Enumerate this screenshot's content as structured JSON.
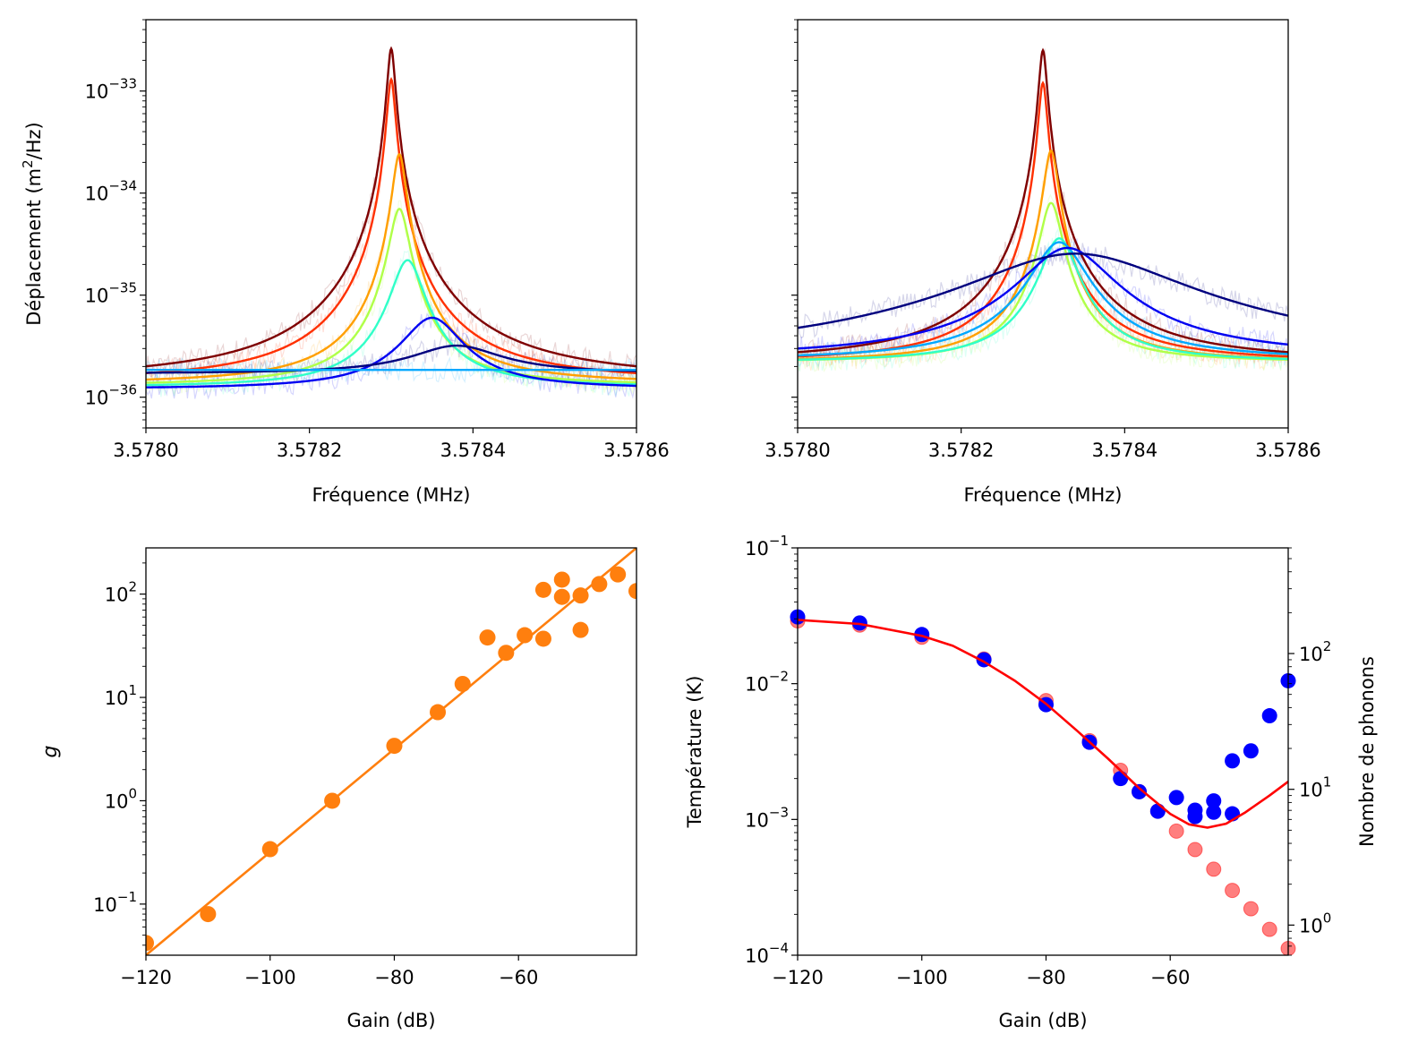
{
  "chart_data": [
    {
      "id": "tl",
      "type": "line",
      "xlabel": "Fréquence (MHz)",
      "ylabel_pre": "Déplacement (m",
      "ylabel_sup": "2",
      "ylabel_post": "/Hz)",
      "xlim": [
        3.578,
        3.5786
      ],
      "ylim": [
        5e-37,
        5e-33
      ],
      "yscale": "log",
      "xticks": [
        "3.5780",
        "3.5782",
        "3.5784",
        "3.5786"
      ],
      "xtick_values": [
        3.578,
        3.5782,
        3.5784,
        3.5786
      ],
      "yticks": [
        {
          "base": "10",
          "exp": "−33",
          "v": 1e-33
        },
        {
          "base": "10",
          "exp": "−34",
          "v": 1e-34
        },
        {
          "base": "10",
          "exp": "−35",
          "v": 1e-35
        },
        {
          "base": "10",
          "exp": "−36",
          "v": 1e-36
        }
      ],
      "series": [
        {
          "color": "#7f0000",
          "f0": 3.5783,
          "gamma": 4.4e-06,
          "peak": 2.6e-33,
          "bg": 1.45e-36
        },
        {
          "color": "#ff3000",
          "f0": 3.5783,
          "gamma": 4.7e-06,
          "peak": 1.3e-33,
          "bg": 1.4e-36
        },
        {
          "color": "#ff9f00",
          "f0": 3.57831,
          "gamma": 7.5e-06,
          "peak": 2.4e-34,
          "bg": 1.35e-36
        },
        {
          "color": "#b0ff48",
          "f0": 3.57831,
          "gamma": 1.1e-05,
          "peak": 7e-35,
          "bg": 1.3e-36
        },
        {
          "color": "#30ffc8",
          "f0": 3.57832,
          "gamma": 1.8e-05,
          "peak": 2.2e-35,
          "bg": 1.25e-36
        },
        {
          "color": "#0000f1",
          "f0": 3.57835,
          "gamma": 3.5e-05,
          "peak": 6e-36,
          "bg": 1.2e-36
        },
        {
          "color": "#00007f",
          "f0": 3.57838,
          "gamma": 6e-05,
          "peak": 3.2e-36,
          "bg": 1.7e-36
        },
        {
          "color": "#00a8ff",
          "f0": 3.57838,
          "gamma": 0.0001,
          "peak": 1.85e-36,
          "bg": 1.85e-36
        }
      ]
    },
    {
      "id": "tr",
      "type": "line",
      "xlabel": "Fréquence (MHz)",
      "xlim": [
        3.578,
        3.5786
      ],
      "ylim": [
        5e-37,
        5e-33
      ],
      "yscale": "log",
      "xticks": [
        "3.5780",
        "3.5782",
        "3.5784",
        "3.5786"
      ],
      "xtick_values": [
        3.578,
        3.5782,
        3.5784,
        3.5786
      ],
      "series": [
        {
          "color": "#7f0000",
          "f0": 3.5783,
          "gamma": 4.5e-06,
          "peak": 2.5e-33,
          "bg": 2.2e-36
        },
        {
          "color": "#ff3000",
          "f0": 3.5783,
          "gamma": 4.8e-06,
          "peak": 1.2e-33,
          "bg": 2.2e-36
        },
        {
          "color": "#ff9f00",
          "f0": 3.57831,
          "gamma": 8e-06,
          "peak": 2.6e-34,
          "bg": 2.2e-36
        },
        {
          "color": "#b0ff48",
          "f0": 3.57831,
          "gamma": 1.2e-05,
          "peak": 8e-35,
          "bg": 2.2e-36
        },
        {
          "color": "#30ffc8",
          "f0": 3.57832,
          "gamma": 2e-05,
          "peak": 3.6e-35,
          "bg": 2.2e-36
        },
        {
          "color": "#00a8ff",
          "f0": 3.57832,
          "gamma": 3e-05,
          "peak": 3.3e-35,
          "bg": 2.3e-36
        },
        {
          "color": "#0000f1",
          "f0": 3.57833,
          "gamma": 5e-05,
          "peak": 2.9e-35,
          "bg": 2.4e-36
        },
        {
          "color": "#00007f",
          "f0": 3.57834,
          "gamma": 0.00012,
          "peak": 2.55e-35,
          "bg": 2.2e-36
        }
      ]
    },
    {
      "id": "bl",
      "type": "scatter",
      "xlabel": "Gain (dB)",
      "ylabel": "g",
      "xlim": [
        -120,
        -41
      ],
      "ylim": [
        0.032,
        280
      ],
      "yscale": "log",
      "color": "#ff7f0e",
      "xticks": [
        "−120",
        "−100",
        "−80",
        "−60"
      ],
      "xtick_values": [
        -120,
        -100,
        -80,
        -60
      ],
      "yticks": [
        {
          "base": "10",
          "exp": "2",
          "v": 100
        },
        {
          "base": "10",
          "exp": "1",
          "v": 10
        },
        {
          "base": "10",
          "exp": "0",
          "v": 1
        },
        {
          "base": "10",
          "exp": "−1",
          "v": 0.1
        }
      ],
      "points": [
        {
          "x": -120,
          "y": 0.042
        },
        {
          "x": -110,
          "y": 0.08
        },
        {
          "x": -100,
          "y": 0.34
        },
        {
          "x": -90,
          "y": 1.0
        },
        {
          "x": -80,
          "y": 3.4
        },
        {
          "x": -73,
          "y": 7.2
        },
        {
          "x": -69,
          "y": 13.5
        },
        {
          "x": -65,
          "y": 38
        },
        {
          "x": -62,
          "y": 27
        },
        {
          "x": -59,
          "y": 40
        },
        {
          "x": -56,
          "y": 110
        },
        {
          "x": -56,
          "y": 37
        },
        {
          "x": -53,
          "y": 138
        },
        {
          "x": -53,
          "y": 94
        },
        {
          "x": -50,
          "y": 97
        },
        {
          "x": -50,
          "y": 45
        },
        {
          "x": -47,
          "y": 125
        },
        {
          "x": -44,
          "y": 155
        },
        {
          "x": -41,
          "y": 107
        }
      ],
      "fit": [
        {
          "x": -120,
          "y": 0.032
        },
        {
          "x": -41,
          "y": 280
        }
      ]
    },
    {
      "id": "br",
      "type": "scatter",
      "xlabel": "Gain (dB)",
      "ylabel": "Température (K)",
      "y2label": "Nombre de phonons",
      "xlim": [
        -120,
        -41
      ],
      "ylim": [
        0.0001,
        0.1
      ],
      "y2lim": [
        0.6,
        600
      ],
      "yscale": "log",
      "xticks": [
        "−120",
        "−100",
        "−80",
        "−60"
      ],
      "xtick_values": [
        -120,
        -100,
        -80,
        -60
      ],
      "yticks": [
        {
          "base": "10",
          "exp": "−1",
          "v": 0.1
        },
        {
          "base": "10",
          "exp": "−2",
          "v": 0.01
        },
        {
          "base": "10",
          "exp": "−3",
          "v": 0.001
        },
        {
          "base": "10",
          "exp": "−4",
          "v": 0.0001
        }
      ],
      "y2ticks": [
        {
          "base": "10",
          "exp": "2",
          "v": 100
        },
        {
          "base": "10",
          "exp": "1",
          "v": 10
        },
        {
          "base": "10",
          "exp": "0",
          "v": 1
        }
      ],
      "blue_color": "#0000ff",
      "red_color": "#ff0000",
      "blue_points": [
        {
          "x": -120,
          "y": 0.031
        },
        {
          "x": -110,
          "y": 0.028
        },
        {
          "x": -100,
          "y": 0.023
        },
        {
          "x": -90,
          "y": 0.015
        },
        {
          "x": -80,
          "y": 0.007
        },
        {
          "x": -73,
          "y": 0.0037
        },
        {
          "x": -68,
          "y": 0.002
        },
        {
          "x": -65,
          "y": 0.0016
        },
        {
          "x": -62,
          "y": 0.00115
        },
        {
          "x": -59,
          "y": 0.00145
        },
        {
          "x": -56,
          "y": 0.00105
        },
        {
          "x": -56,
          "y": 0.00117
        },
        {
          "x": -53,
          "y": 0.00137
        },
        {
          "x": -53,
          "y": 0.00113
        },
        {
          "x": -50,
          "y": 0.0011
        },
        {
          "x": -50,
          "y": 0.0027
        },
        {
          "x": -47,
          "y": 0.0032
        },
        {
          "x": -44,
          "y": 0.0058
        },
        {
          "x": -41,
          "y": 0.0105
        }
      ],
      "red_points": [
        {
          "x": -120,
          "y": 0.029
        },
        {
          "x": -110,
          "y": 0.027
        },
        {
          "x": -100,
          "y": 0.022
        },
        {
          "x": -90,
          "y": 0.0152
        },
        {
          "x": -80,
          "y": 0.0075
        },
        {
          "x": -73,
          "y": 0.0038
        },
        {
          "x": -68,
          "y": 0.0023
        },
        {
          "x": -65,
          "y": 0.0016
        },
        {
          "x": -62,
          "y": 0.00115
        },
        {
          "x": -59,
          "y": 0.00082
        },
        {
          "x": -56,
          "y": 0.0006
        },
        {
          "x": -53,
          "y": 0.00043
        },
        {
          "x": -50,
          "y": 0.0003
        },
        {
          "x": -47,
          "y": 0.00022
        },
        {
          "x": -44,
          "y": 0.000155
        },
        {
          "x": -41,
          "y": 0.000112
        }
      ],
      "fit_curve": [
        {
          "x": -120,
          "y": 0.0295
        },
        {
          "x": -110,
          "y": 0.0275
        },
        {
          "x": -100,
          "y": 0.0225
        },
        {
          "x": -95,
          "y": 0.019
        },
        {
          "x": -90,
          "y": 0.0145
        },
        {
          "x": -85,
          "y": 0.0105
        },
        {
          "x": -80,
          "y": 0.0071
        },
        {
          "x": -75,
          "y": 0.0045
        },
        {
          "x": -70,
          "y": 0.0028
        },
        {
          "x": -65,
          "y": 0.0017
        },
        {
          "x": -60,
          "y": 0.0011
        },
        {
          "x": -57,
          "y": 0.00092
        },
        {
          "x": -54,
          "y": 0.00087
        },
        {
          "x": -51,
          "y": 0.00093
        },
        {
          "x": -48,
          "y": 0.00112
        },
        {
          "x": -44,
          "y": 0.0015
        },
        {
          "x": -41,
          "y": 0.0019
        }
      ]
    }
  ]
}
